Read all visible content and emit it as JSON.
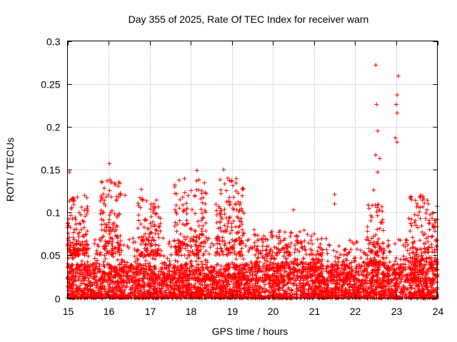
{
  "chart_data": {
    "type": "scatter",
    "title": "Day 355 of 2025, Rate Of TEC Index for receiver warn",
    "xlabel": "GPS time / hours",
    "ylabel": "ROTI / TECUs",
    "xlim": [
      15,
      24
    ],
    "ylim": [
      0,
      0.3
    ],
    "x_ticks": [
      15,
      16,
      17,
      18,
      19,
      20,
      21,
      22,
      23,
      24
    ],
    "x_tick_labels": [
      "15",
      "16",
      "17",
      "18",
      "19",
      "20",
      "21",
      "22",
      "23",
      "24"
    ],
    "y_ticks": [
      0,
      0.05,
      0.1,
      0.15,
      0.2,
      0.25,
      0.3
    ],
    "y_tick_labels": [
      "0",
      "0.05",
      "0.1",
      "0.15",
      "0.2",
      "0.25",
      "0.3"
    ],
    "grid": true,
    "marker": "+",
    "color": "#ff0000",
    "series": [
      {
        "name": "ROTI",
        "notable_points": [
          {
            "x": 15.05,
            "y": 0.147
          },
          {
            "x": 15.1,
            "y": 0.115
          },
          {
            "x": 16.02,
            "y": 0.157
          },
          {
            "x": 16.05,
            "y": 0.135
          },
          {
            "x": 16.4,
            "y": 0.12
          },
          {
            "x": 16.8,
            "y": 0.127
          },
          {
            "x": 18.15,
            "y": 0.149
          },
          {
            "x": 18.2,
            "y": 0.138
          },
          {
            "x": 18.8,
            "y": 0.15
          },
          {
            "x": 18.9,
            "y": 0.14
          },
          {
            "x": 19.1,
            "y": 0.125
          },
          {
            "x": 20.5,
            "y": 0.103
          },
          {
            "x": 21.5,
            "y": 0.121
          },
          {
            "x": 21.5,
            "y": 0.11
          },
          {
            "x": 22.45,
            "y": 0.126
          },
          {
            "x": 22.5,
            "y": 0.272
          },
          {
            "x": 22.52,
            "y": 0.226
          },
          {
            "x": 22.55,
            "y": 0.195
          },
          {
            "x": 22.5,
            "y": 0.167
          },
          {
            "x": 22.6,
            "y": 0.163
          },
          {
            "x": 22.55,
            "y": 0.147
          },
          {
            "x": 23.05,
            "y": 0.259
          },
          {
            "x": 23.02,
            "y": 0.237
          },
          {
            "x": 23.0,
            "y": 0.226
          },
          {
            "x": 23.02,
            "y": 0.216
          },
          {
            "x": 22.98,
            "y": 0.187
          },
          {
            "x": 23.02,
            "y": 0.182
          },
          {
            "x": 23.6,
            "y": 0.12
          }
        ],
        "clusters": [
          {
            "x0": 15,
            "x1": 24,
            "y_min": 0.0,
            "y_max": 0.04,
            "count": 3200
          },
          {
            "x0": 15,
            "x1": 24,
            "y_min": 0.02,
            "y_max": 0.07,
            "count": 900
          },
          {
            "x0": 15.0,
            "x1": 15.5,
            "y_min": 0.05,
            "y_max": 0.12,
            "count": 120
          },
          {
            "x0": 15.8,
            "x1": 16.3,
            "y_min": 0.05,
            "y_max": 0.14,
            "count": 120
          },
          {
            "x0": 16.7,
            "x1": 17.3,
            "y_min": 0.05,
            "y_max": 0.12,
            "count": 110
          },
          {
            "x0": 17.6,
            "x1": 18.4,
            "y_min": 0.05,
            "y_max": 0.14,
            "count": 140
          },
          {
            "x0": 18.6,
            "x1": 19.3,
            "y_min": 0.05,
            "y_max": 0.14,
            "count": 140
          },
          {
            "x0": 19.5,
            "x1": 21.2,
            "y_min": 0.04,
            "y_max": 0.08,
            "count": 140
          },
          {
            "x0": 22.3,
            "x1": 22.7,
            "y_min": 0.04,
            "y_max": 0.11,
            "count": 80
          },
          {
            "x0": 23.3,
            "x1": 24.0,
            "y_min": 0.04,
            "y_max": 0.12,
            "count": 140
          }
        ]
      }
    ]
  }
}
